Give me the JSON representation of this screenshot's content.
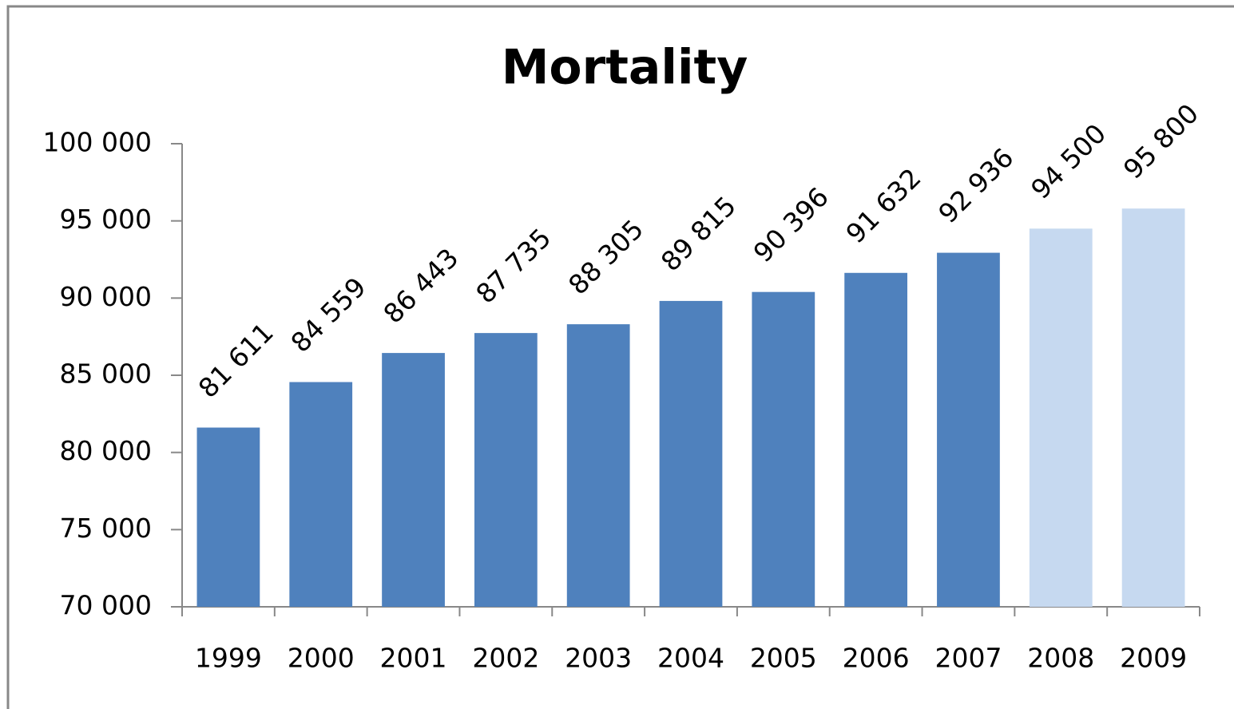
{
  "chart_data": {
    "type": "bar",
    "title": "Mortality",
    "categories": [
      "1999",
      "2000",
      "2001",
      "2002",
      "2003",
      "2004",
      "2005",
      "2006",
      "2007",
      "2008",
      "2009"
    ],
    "values": [
      81611,
      84559,
      86443,
      87735,
      88305,
      89815,
      90396,
      91632,
      92936,
      94500,
      95800
    ],
    "value_labels": [
      "81 611",
      "84 559",
      "86 443",
      "87 735",
      "88 305",
      "89 815",
      "90 396",
      "91 632",
      "92 936",
      "94 500",
      "95 800"
    ],
    "colors": [
      "#4f81bd",
      "#4f81bd",
      "#4f81bd",
      "#4f81bd",
      "#4f81bd",
      "#4f81bd",
      "#4f81bd",
      "#4f81bd",
      "#4f81bd",
      "#c6d9f0",
      "#c6d9f0"
    ],
    "ylim": [
      70000,
      100000
    ],
    "yticks": [
      {
        "value": 70000,
        "label": "70 000"
      },
      {
        "value": 75000,
        "label": "75 000"
      },
      {
        "value": 80000,
        "label": "80 000"
      },
      {
        "value": 85000,
        "label": "85 000"
      },
      {
        "value": 90000,
        "label": "90 000"
      },
      {
        "value": 95000,
        "label": "95 000"
      },
      {
        "value": 100000,
        "label": "100 000"
      }
    ],
    "grid": false
  }
}
